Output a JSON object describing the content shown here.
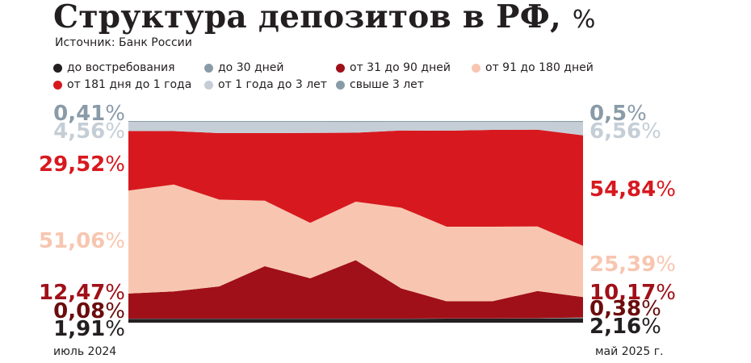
{
  "title": "Структура депозитов в РФ,",
  "title_unit": "%",
  "source": "Источник: Банк России",
  "colors": {
    "demand": "#231f20",
    "upto30": "#8a9ba8",
    "d31_90": "#a01018",
    "d91_180": "#f8c6b0",
    "d181_1y": "#d7191f",
    "y1_3": "#c5ced6",
    "over3y": "#8a9ba8"
  },
  "legend": [
    {
      "label": "до востребования",
      "color": "#231f20"
    },
    {
      "label": "до 30 дней",
      "color": "#8a9ba8"
    },
    {
      "label": "от 31 до 90 дней",
      "color": "#a01018"
    },
    {
      "label": "от 91 до 180 дней",
      "color": "#f8c6b0"
    },
    {
      "label": "от 181 дня до 1 года",
      "color": "#d7191f"
    },
    {
      "label": "от 1 года до 3 лет",
      "color": "#c5ced6"
    },
    {
      "label": "свыше 3 лет",
      "color": "#8a9ba8"
    }
  ],
  "chart_data": {
    "type": "area",
    "stacked": true,
    "ylim": [
      0,
      100
    ],
    "x_start_label": "июль 2024",
    "x_end_label": "май 2025 г.",
    "n_points": 11,
    "series": [
      {
        "name": "до востребования",
        "color": "#231f20",
        "values": [
          1.91,
          1.9,
          1.9,
          1.9,
          1.9,
          1.9,
          1.9,
          2.0,
          2.0,
          2.1,
          2.16
        ]
      },
      {
        "name": "до 30 дней",
        "color": "#8a9ba8",
        "values": [
          0.08,
          0.1,
          0.1,
          0.1,
          0.1,
          0.1,
          0.1,
          0.1,
          0.1,
          0.1,
          0.38
        ]
      },
      {
        "name": "от 31 до 90 дней",
        "color": "#a01018",
        "values": [
          12.47,
          13.5,
          16.0,
          26.0,
          20.0,
          29.0,
          15.0,
          8.5,
          8.5,
          13.5,
          10.17
        ]
      },
      {
        "name": "от 91 до 180 дней",
        "color": "#f8c6b0",
        "values": [
          51.06,
          53.0,
          43.0,
          32.5,
          27.5,
          29.0,
          40.0,
          37.0,
          37.0,
          32.0,
          25.39
        ]
      },
      {
        "name": "от 181 дня до 1 года",
        "color": "#d7191f",
        "values": [
          29.52,
          26.5,
          33.0,
          33.5,
          44.6,
          34.2,
          38.3,
          47.6,
          48.0,
          48.0,
          54.84
        ]
      },
      {
        "name": "от 1 года до 3 лет",
        "color": "#c5ced6",
        "values": [
          4.56,
          4.6,
          5.6,
          5.6,
          5.5,
          5.3,
          4.3,
          4.4,
          4.0,
          3.9,
          6.56
        ]
      },
      {
        "name": "свыше 3 лет",
        "color": "#8a9ba8",
        "values": [
          0.41,
          0.4,
          0.4,
          0.4,
          0.4,
          0.5,
          0.4,
          0.4,
          0.4,
          0.4,
          0.5
        ]
      }
    ],
    "start_labels": [
      {
        "text": "0,41",
        "color": "#8a9ba8"
      },
      {
        "text": "4,56",
        "color": "#c5ced6"
      },
      {
        "text": "29,52",
        "color": "#d7191f"
      },
      {
        "text": "51,06",
        "color": "#f8c6b0"
      },
      {
        "text": "12,47",
        "color": "#a01018"
      },
      {
        "text": "0,08",
        "color": "#6b0c0c"
      },
      {
        "text": "1,91",
        "color": "#231f20"
      }
    ],
    "end_labels": [
      {
        "text": "0,5",
        "color": "#8a9ba8"
      },
      {
        "text": "6,56",
        "color": "#c5ced6"
      },
      {
        "text": "54,84",
        "color": "#d7191f"
      },
      {
        "text": "25,39",
        "color": "#f8c6b0"
      },
      {
        "text": "10,17",
        "color": "#a01018"
      },
      {
        "text": "0,38",
        "color": "#6b0c0c"
      },
      {
        "text": "2,16",
        "color": "#231f20"
      }
    ],
    "percent_sign": "%"
  }
}
